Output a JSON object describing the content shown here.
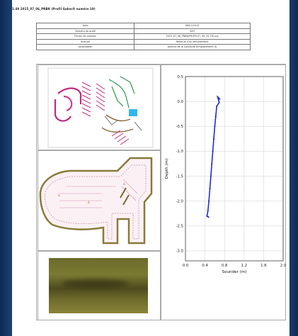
{
  "document": {
    "header": "1.49  2015_07_06_PNBK  (Profil Gabarit numéro 19)"
  },
  "meta_table": {
    "rows": [
      {
        "label": "Date",
        "value": "06/07/2015"
      },
      {
        "label": "Numéro de profil",
        "value": "049"
      },
      {
        "label": "Fichier de position",
        "value": "2015_07_06_PNBK/PROFIL07_06_15_CB.xyz"
      },
      {
        "label": "Analyse",
        "value": "Retenue d'un affouillement"
      },
      {
        "label": "Localisation",
        "value": "Avenue de la Concorde (Emplacement 4)"
      }
    ]
  },
  "chart_data": {
    "type": "line",
    "xlabel": "Sounder (m)",
    "ylabel": "Depth (m)",
    "xlim": [
      0,
      2.0
    ],
    "ylim": [
      -3.2,
      0.5
    ],
    "xticks": [
      "0.0",
      "0.4",
      "0.8",
      "1.2",
      "1.6",
      "2.0"
    ],
    "yticks": [
      "0.5",
      "0.0",
      "-0.5",
      "-1.0",
      "-1.5",
      "-2.0",
      "-2.5",
      "-3.0"
    ],
    "grid": true,
    "series": [
      {
        "color": "#1f2fd8",
        "points": [
          [
            0.7,
            0.05
          ],
          [
            0.66,
            0.09
          ],
          [
            0.69,
            -0.02
          ],
          [
            0.64,
            -0.1
          ],
          [
            0.62,
            -0.3
          ],
          [
            0.6,
            -0.5
          ],
          [
            0.58,
            -0.75
          ],
          [
            0.56,
            -1.0
          ],
          [
            0.54,
            -1.25
          ],
          [
            0.52,
            -1.5
          ],
          [
            0.5,
            -1.75
          ],
          [
            0.48,
            -2.0
          ],
          [
            0.46,
            -2.2
          ],
          [
            0.44,
            -2.3
          ],
          [
            0.47,
            -2.32
          ]
        ]
      }
    ]
  }
}
